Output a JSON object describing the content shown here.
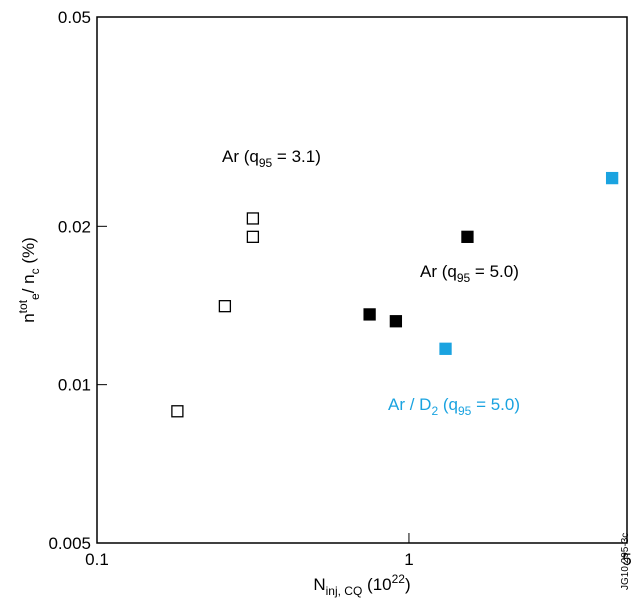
{
  "chart_data": {
    "type": "scatter",
    "xscale": "log",
    "yscale": "log",
    "xlim": [
      0.1,
      5
    ],
    "ylim": [
      0.005,
      0.05
    ],
    "xticks": [
      0.1,
      1,
      5
    ],
    "yticks": [
      0.005,
      0.01,
      0.02,
      0.05
    ],
    "xlabel": [
      {
        "t": "N"
      },
      {
        "sub": "inj, CQ"
      },
      {
        "t": " (10"
      },
      {
        "sup": "22"
      },
      {
        "t": ")"
      }
    ],
    "ylabel": [
      {
        "t": "n"
      },
      {
        "sup": "tot"
      },
      {
        "sub": "e"
      },
      {
        "t": "/ n"
      },
      {
        "sub": "c"
      },
      {
        "t": " (%)"
      }
    ],
    "figure_id": "JG10.295-3c",
    "series": [
      {
        "label": [
          {
            "t": "Ar (q"
          },
          {
            "sub": "95"
          },
          {
            "t": " = 3.1)"
          }
        ],
        "color": "#000000",
        "filled": false,
        "x": [
          0.181,
          0.257,
          0.316,
          0.316
        ],
        "values": [
          0.0089,
          0.0141,
          0.0207,
          0.0191
        ]
      },
      {
        "label": [
          {
            "t": "Ar (q"
          },
          {
            "sub": "95"
          },
          {
            "t": " = 5.0)"
          }
        ],
        "color": "#000000",
        "filled": true,
        "x": [
          0.748,
          0.908,
          1.54
        ],
        "values": [
          0.0136,
          0.0132,
          0.0191
        ]
      },
      {
        "label": [
          {
            "t": "Ar / D"
          },
          {
            "sub": "2"
          },
          {
            "t": " (q"
          },
          {
            "sub": "95"
          },
          {
            "t": " = 5.0)"
          }
        ],
        "color": "#1aa3e0",
        "filled": true,
        "x": [
          1.31,
          4.48
        ],
        "values": [
          0.0117,
          0.0247
        ]
      }
    ]
  }
}
